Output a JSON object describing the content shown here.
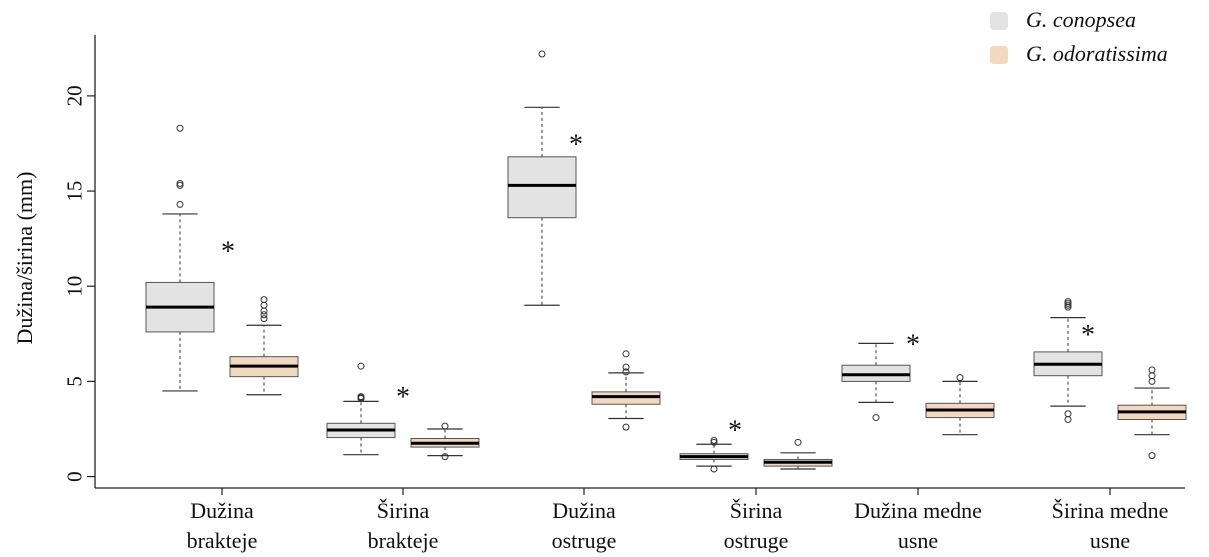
{
  "chart_data": {
    "type": "box",
    "ylabel": "Dužina/širina (mm)",
    "ylim": [
      -0.6,
      23.2
    ],
    "yticks": [
      0,
      5,
      10,
      15,
      20
    ],
    "legend": {
      "placement": "top-right",
      "entries": [
        {
          "name": "G. conopsea",
          "color": "#e3e3e3"
        },
        {
          "name": "G. odoratissima",
          "color": "#f2d8bf"
        }
      ]
    },
    "groups": [
      {
        "label_lines": [
          "Dužina",
          "brakteje"
        ],
        "significance": "*"
      },
      {
        "label_lines": [
          "Širina",
          "brakteje"
        ],
        "significance": "*"
      },
      {
        "label_lines": [
          "Dužina",
          "ostruge"
        ],
        "significance": "*"
      },
      {
        "label_lines": [
          "Širina",
          "ostruge"
        ],
        "significance": "*"
      },
      {
        "label_lines": [
          "Dužina medne",
          "usne"
        ],
        "significance": "*"
      },
      {
        "label_lines": [
          "Širina medne",
          "usne"
        ],
        "significance": "*"
      }
    ],
    "series": [
      {
        "name": "G. conopsea",
        "color": "#e3e3e3",
        "boxes": [
          {
            "min": 4.5,
            "q1": 7.6,
            "median": 8.9,
            "q3": 10.2,
            "max": 13.8,
            "outliers": [
              14.3,
              15.3,
              15.4,
              18.3
            ]
          },
          {
            "min": 1.15,
            "q1": 2.05,
            "median": 2.45,
            "q3": 2.8,
            "max": 3.95,
            "outliers": [
              4.1,
              4.15,
              4.2,
              5.8
            ]
          },
          {
            "min": 9.0,
            "q1": 13.6,
            "median": 15.3,
            "q3": 16.8,
            "max": 19.4,
            "outliers": [
              22.2
            ]
          },
          {
            "min": 0.55,
            "q1": 0.9,
            "median": 1.05,
            "q3": 1.2,
            "max": 1.7,
            "outliers": [
              0.4,
              1.8,
              1.9
            ]
          },
          {
            "min": 3.9,
            "q1": 5.0,
            "median": 5.35,
            "q3": 5.85,
            "max": 7.0,
            "outliers": [
              3.1
            ]
          },
          {
            "min": 3.7,
            "q1": 5.3,
            "median": 5.9,
            "q3": 6.55,
            "max": 8.35,
            "outliers": [
              3.0,
              3.3,
              8.9,
              9.0,
              9.1,
              9.2
            ]
          }
        ]
      },
      {
        "name": "G. odoratissima",
        "color": "#f2d8bf",
        "boxes": [
          {
            "min": 4.3,
            "q1": 5.25,
            "median": 5.8,
            "q3": 6.3,
            "max": 7.95,
            "outliers": [
              8.3,
              8.5,
              8.7,
              9.0,
              9.3
            ]
          },
          {
            "min": 1.1,
            "q1": 1.55,
            "median": 1.75,
            "q3": 2.0,
            "max": 2.5,
            "outliers": [
              1.05,
              2.65
            ]
          },
          {
            "min": 3.05,
            "q1": 3.8,
            "median": 4.2,
            "q3": 4.45,
            "max": 5.45,
            "outliers": [
              2.6,
              5.5,
              5.75,
              6.45
            ]
          },
          {
            "min": 0.4,
            "q1": 0.55,
            "median": 0.75,
            "q3": 0.9,
            "max": 1.25,
            "outliers": [
              1.8
            ]
          },
          {
            "min": 2.2,
            "q1": 3.1,
            "median": 3.5,
            "q3": 3.85,
            "max": 5.0,
            "outliers": [
              5.2
            ]
          },
          {
            "min": 2.2,
            "q1": 3.0,
            "median": 3.4,
            "q3": 3.75,
            "max": 4.65,
            "outliers": [
              1.1,
              5.0,
              5.3,
              5.6
            ]
          }
        ]
      }
    ]
  }
}
